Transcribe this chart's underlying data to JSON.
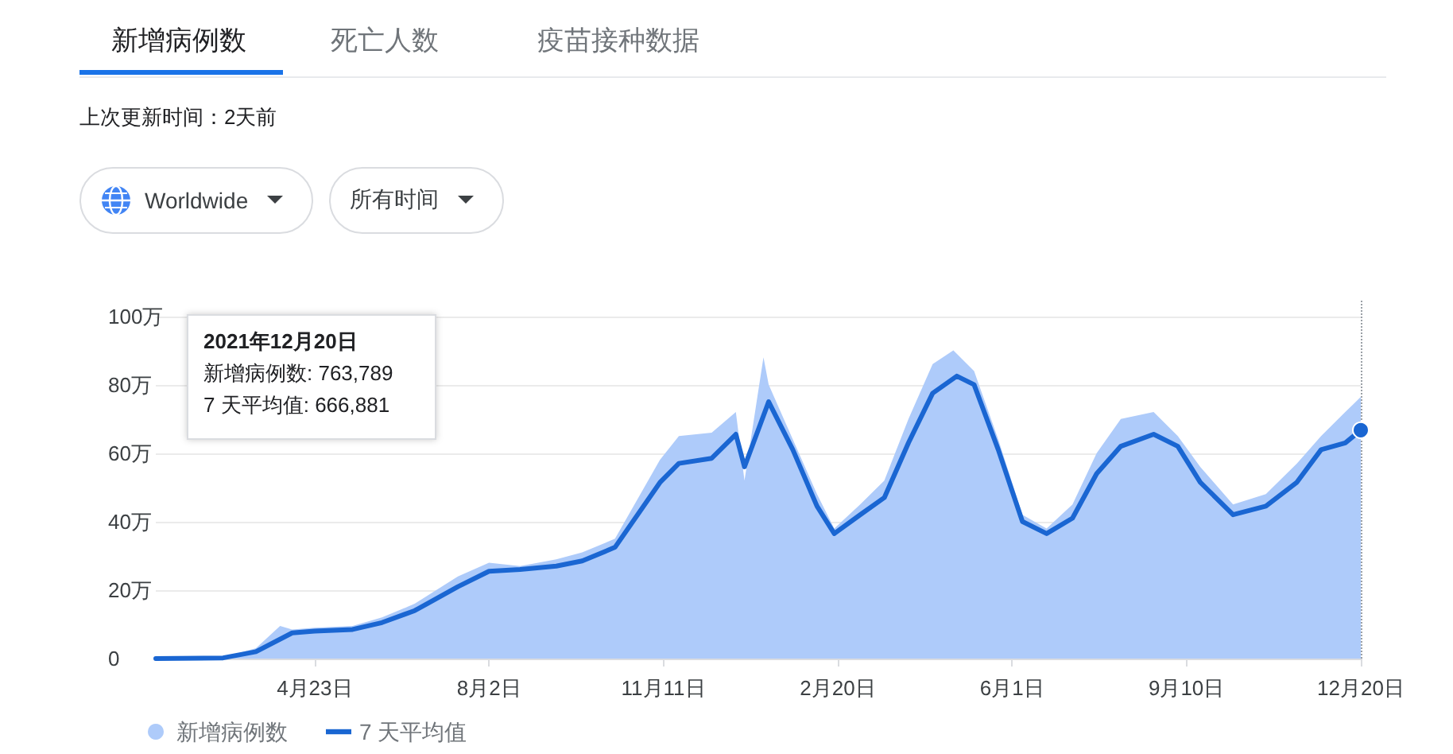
{
  "chart_data": {
    "type": "area",
    "legend": "bottom left",
    "grid": "y",
    "line_style": "solid",
    "marker": "none",
    "xlim": [
      "2020-01-22",
      "2021-12-20"
    ],
    "xticks": [
      {
        "value": "2020-04-23",
        "label": "4月23日"
      },
      {
        "value": "2020-08-02",
        "label": "8月2日"
      },
      {
        "value": "2020-11-11",
        "label": "11月11日"
      },
      {
        "value": "2021-02-20",
        "label": "2月20日"
      },
      {
        "value": "2021-06-01",
        "label": "6月1日"
      },
      {
        "value": "2021-09-10",
        "label": "9月10日"
      },
      {
        "value": "2021-12-20",
        "label": "12月20日"
      }
    ],
    "ylim": [
      0,
      105
    ],
    "yticks": [
      {
        "value": 0,
        "label": "0"
      },
      {
        "value": 20,
        "label": "20万"
      },
      {
        "value": 40,
        "label": "40万"
      },
      {
        "value": 60,
        "label": "60万"
      },
      {
        "value": 80,
        "label": "80万"
      },
      {
        "value": 100,
        "label": "100万"
      }
    ],
    "ref_lines": [
      {
        "axis": "x",
        "value": "2021-12-20",
        "label": null,
        "color": "#9aa0a6",
        "line_style": "dotted"
      }
    ],
    "annotations": [
      "新增病例数",
      "死亡人数",
      "疫苗接种数据",
      "上次更新时间：2天前",
      "Worldwide",
      "所有时间",
      "2021年12月20日",
      "新增病例数: 763,789",
      "7 天平均值: 666,881"
    ],
    "series": [
      {
        "name": "新增病例数",
        "color": "#aecbfa",
        "x": [
          "2020-01-22",
          "2020-03-01",
          "2020-03-20",
          "2020-04-03",
          "2020-04-10",
          "2020-04-23",
          "2020-05-15",
          "2020-06-01",
          "2020-06-20",
          "2020-07-15",
          "2020-08-02",
          "2020-08-20",
          "2020-09-10",
          "2020-09-25",
          "2020-10-14",
          "2020-11-09",
          "2020-11-20",
          "2020-12-09",
          "2020-12-23",
          "2020-12-28",
          "2021-01-08",
          "2021-01-11",
          "2021-01-25",
          "2021-02-08",
          "2021-02-18",
          "2021-03-05",
          "2021-03-19",
          "2021-04-02",
          "2021-04-16",
          "2021-04-28",
          "2021-05-10",
          "2021-05-24",
          "2021-06-07",
          "2021-06-21",
          "2021-07-06",
          "2021-07-20",
          "2021-08-03",
          "2021-08-22",
          "2021-09-05",
          "2021-09-18",
          "2021-10-07",
          "2021-10-26",
          "2021-11-13",
          "2021-11-27",
          "2021-12-11",
          "2021-12-20"
        ],
        "values": [
          0,
          0.3,
          3,
          9.5,
          8.5,
          9,
          9.5,
          12,
          16,
          24,
          28,
          27,
          29,
          31,
          35,
          58,
          65,
          66,
          72,
          52,
          88,
          80,
          64,
          48,
          38,
          45,
          52,
          70,
          86,
          90,
          84,
          64,
          42,
          38,
          45,
          60,
          70,
          72,
          65,
          56,
          45,
          48,
          57,
          65,
          72,
          76.4
        ]
      },
      {
        "name": "7 天平均值",
        "type": "line",
        "color": "#1a66d2",
        "x": [
          "2020-01-22",
          "2020-03-01",
          "2020-03-20",
          "2020-04-10",
          "2020-04-23",
          "2020-05-15",
          "2020-06-01",
          "2020-06-20",
          "2020-07-15",
          "2020-08-02",
          "2020-08-20",
          "2020-09-10",
          "2020-09-25",
          "2020-10-14",
          "2020-11-09",
          "2020-11-20",
          "2020-12-09",
          "2020-12-23",
          "2020-12-28",
          "2021-01-11",
          "2021-01-25",
          "2021-02-08",
          "2021-02-18",
          "2021-03-05",
          "2021-03-19",
          "2021-04-02",
          "2021-04-16",
          "2021-04-30",
          "2021-05-10",
          "2021-05-24",
          "2021-06-07",
          "2021-06-21",
          "2021-07-06",
          "2021-07-20",
          "2021-08-03",
          "2021-08-22",
          "2021-09-05",
          "2021-09-18",
          "2021-10-07",
          "2021-10-26",
          "2021-11-13",
          "2021-11-27",
          "2021-12-11",
          "2021-12-20"
        ],
        "values": [
          0,
          0.2,
          2,
          7.5,
          8,
          8.5,
          10.5,
          14,
          21,
          25.5,
          26,
          27,
          28.5,
          32.5,
          51.4,
          57,
          58.5,
          65.5,
          56,
          75,
          61,
          44.5,
          36.5,
          42,
          47,
          63,
          77.5,
          82.5,
          80,
          61,
          40,
          36.5,
          41,
          54,
          62,
          65.5,
          62,
          51.5,
          42,
          44.5,
          51.5,
          61,
          63,
          66.7
        ]
      }
    ]
  }
}
